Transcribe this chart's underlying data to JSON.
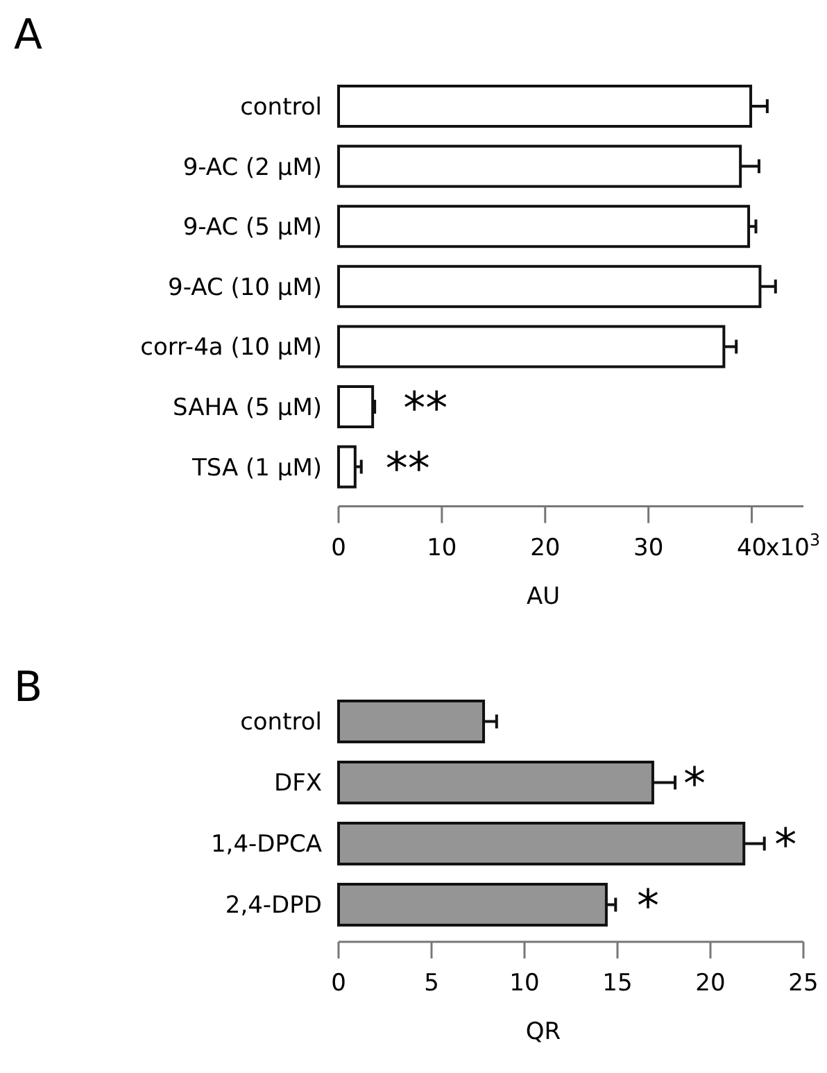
{
  "chart_data": [
    {
      "type": "bar",
      "orientation": "horizontal",
      "title": "A",
      "xlabel": "AU",
      "categories": [
        "control",
        "9-AC (2 μM)",
        "9-AC (5 μM)",
        "9-AC (10 μM)",
        "corr-4a (10 μM)",
        "SAHA (5 μM)",
        "TSA (1 μM)"
      ],
      "values": [
        39.9,
        38.9,
        39.7,
        40.8,
        37.3,
        3.3,
        1.6
      ],
      "errors": [
        1.6,
        1.8,
        0.7,
        1.5,
        1.2,
        0.2,
        0.6
      ],
      "color": "#ffffff",
      "xlim": [
        0,
        45
      ],
      "xticks": [
        0,
        10,
        20,
        30,
        40
      ],
      "grid": false,
      "annotations": [
        "x10$^{3}$",
        {
          "text": "**",
          "x": 3.3,
          "y": "SAHA (5 μM)"
        },
        {
          "text": "**",
          "x": 1.6,
          "y": "TSA (1 μM)"
        }
      ]
    },
    {
      "type": "bar",
      "orientation": "horizontal",
      "title": "B",
      "xlabel": "QR",
      "categories": [
        "control",
        "DFX",
        "1,4-DPCA",
        "2,4-DPD"
      ],
      "values": [
        7.8,
        16.9,
        21.8,
        14.4
      ],
      "errors": [
        0.7,
        1.2,
        1.1,
        0.5
      ],
      "color": "#959595",
      "xlim": [
        0,
        25
      ],
      "xticks": [
        0,
        5,
        10,
        15,
        20,
        25
      ],
      "grid": false,
      "annotations": [
        {
          "text": "*",
          "x": 16.9,
          "y": "DFX"
        },
        {
          "text": "*",
          "x": 21.8,
          "y": "1,4-DPCA"
        },
        {
          "text": "*",
          "x": 14.4,
          "y": "2,4-DPD"
        }
      ]
    }
  ]
}
